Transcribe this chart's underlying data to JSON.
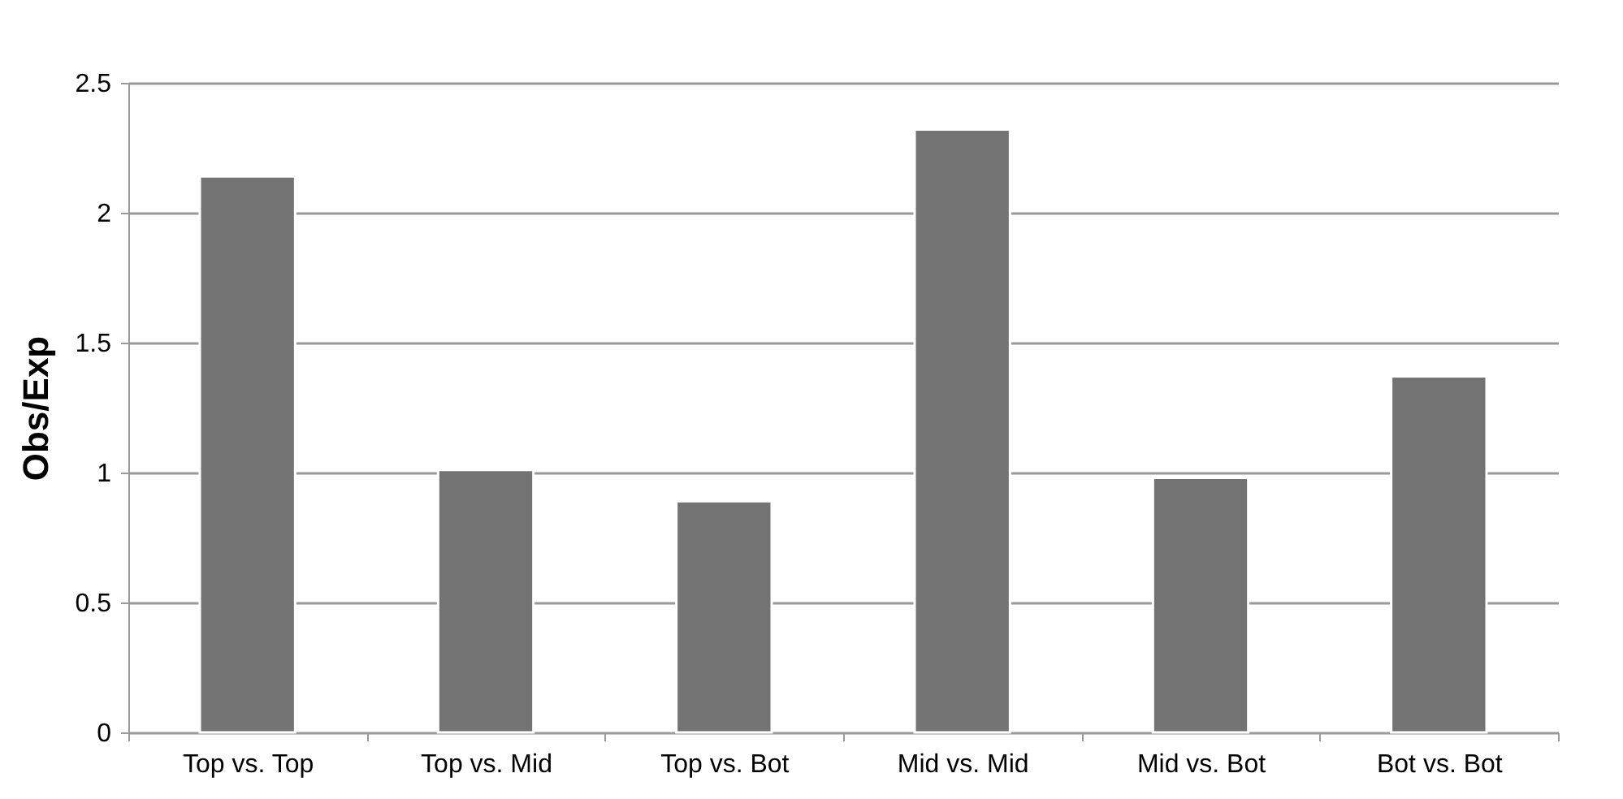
{
  "chart_data": {
    "type": "bar",
    "ylabel": "Obs/Exp",
    "categories": [
      "Top vs. Top",
      "Top vs. Mid",
      "Top vs. Bot",
      "Mid vs. Mid",
      "Mid vs. Bot",
      "Bot vs. Bot"
    ],
    "values": [
      2.14,
      1.01,
      0.89,
      2.32,
      0.98,
      1.37
    ],
    "color": "#737373",
    "ylim": [
      0,
      2.5
    ],
    "yticks": [
      0,
      0.5,
      1,
      1.5,
      2,
      2.5
    ],
    "grid": "y"
  }
}
